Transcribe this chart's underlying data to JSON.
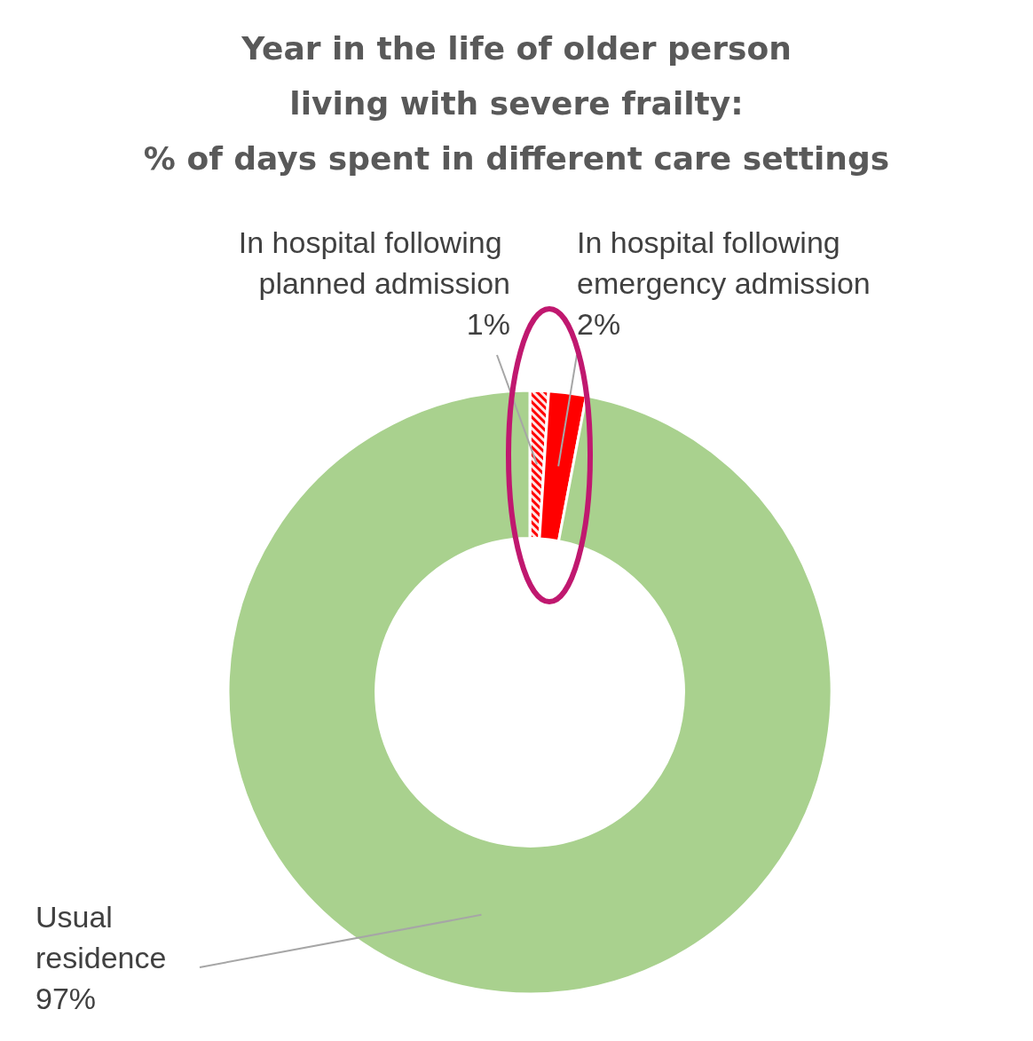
{
  "chart_data": {
    "type": "donut",
    "title": "Year in the life of older person\nliving with severe frailty:\n% of days spent in different care settings",
    "categories": [
      "In hospital following planned admission",
      "In hospital following emergency admission",
      "Usual residence"
    ],
    "values": [
      1,
      2,
      97
    ],
    "value_labels": [
      "1%",
      "2%",
      "97%"
    ],
    "colors": [
      "#ff0000",
      "#ff0000",
      "#a9d18e"
    ],
    "legend": false
  }
}
